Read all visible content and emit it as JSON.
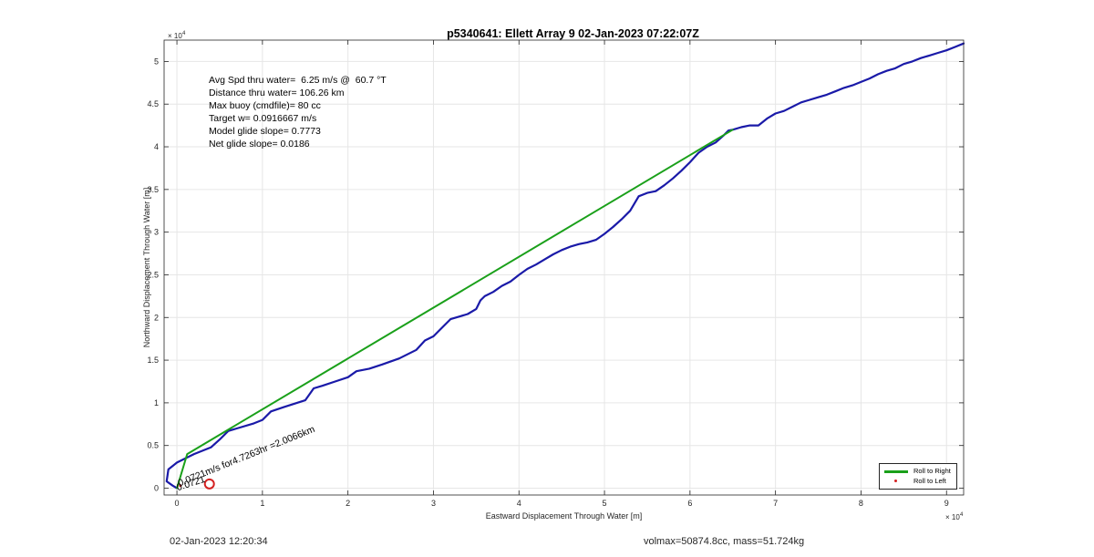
{
  "title": "p5340641: Ellett Array 9 02-Jan-2023 07:22:07Z",
  "stats": [
    "Avg Spd thru water=  6.25 m/s @  60.7 °T",
    "Distance thru water= 106.26 km",
    "Max buoy (cmdfile)= 80 cc",
    "Target w= 0.0916667 m/s",
    "Model glide slope= 0.7773",
    "Net glide slope= 0.0186"
  ],
  "annotation": "0.0721m/s for4.7263hr =2.0066km",
  "annotation_overlap_text": "0.0721",
  "footer": {
    "timestamp": "02-Jan-2023 12:20:34",
    "mass_info": "volmax=50874.8cc, mass=51.724kg"
  },
  "colors": {
    "track": "#1a1aa8",
    "roll_right": "#1aa01a",
    "roll_left": "#d42020",
    "grid": "#e6e6e6",
    "axis": "#262626"
  },
  "chart_data": {
    "type": "line",
    "xlabel": "Eastward Displacement Through Water [m]",
    "ylabel": "Northward Displacement Through Water [m]",
    "x_exponent_label": "× 10",
    "y_exponent_label": "× 10",
    "exponent": "4",
    "xlim": [
      -1500,
      92000
    ],
    "ylim": [
      -800,
      52500
    ],
    "xticks": [
      0,
      10000,
      20000,
      30000,
      40000,
      50000,
      60000,
      70000,
      80000,
      90000
    ],
    "xtick_labels": [
      "0",
      "1",
      "2",
      "3",
      "4",
      "5",
      "6",
      "7",
      "8",
      "9"
    ],
    "yticks": [
      0,
      5000,
      10000,
      15000,
      20000,
      25000,
      30000,
      35000,
      40000,
      45000,
      50000
    ],
    "ytick_labels": [
      "0",
      "0.5",
      "1",
      "1.5",
      "2",
      "2.5",
      "3",
      "3.5",
      "4",
      "4.5",
      "5"
    ],
    "grid": true,
    "legend_position": "bottom-right",
    "legend": [
      "Roll to Right",
      "Roll to Left"
    ],
    "series": [
      {
        "name": "",
        "style": "track",
        "x": [
          0,
          -500,
          -1200,
          -1000,
          0,
          2000,
          4000,
          5000,
          6000,
          7000,
          9000,
          10000,
          11000,
          12500,
          15000,
          15500,
          16000,
          17000,
          18500,
          20000,
          21000,
          22500,
          24000,
          26000,
          28000,
          29000,
          30000,
          31000,
          32000,
          33000,
          34000,
          35000,
          35500,
          36000,
          37000,
          38000,
          39000,
          40000,
          41000,
          42000,
          43000,
          44000,
          45000,
          46000,
          47000,
          48000,
          49000,
          50000,
          51000,
          52000,
          53000,
          54000,
          55000,
          56000,
          57000,
          58000,
          59000,
          60000,
          61000,
          62000,
          63000,
          64000,
          64500,
          65000,
          66000,
          67000,
          68000,
          69000,
          70000,
          71000,
          72000,
          73000,
          74000,
          75000,
          76000,
          77000,
          78000,
          79000,
          80000,
          81000,
          82000,
          83000,
          84000,
          85000,
          86000,
          87000,
          88000,
          89000,
          90000,
          91000,
          92000
        ],
        "y": [
          0,
          300,
          800,
          2200,
          3000,
          4000,
          4800,
          5700,
          6700,
          7000,
          7600,
          8000,
          9000,
          9500,
          10300,
          11000,
          11700,
          12000,
          12500,
          13000,
          13700,
          14000,
          14500,
          15200,
          16200,
          17300,
          17800,
          18800,
          19800,
          20100,
          20400,
          21000,
          22000,
          22500,
          23000,
          23700,
          24200,
          25000,
          25700,
          26200,
          26800,
          27400,
          27900,
          28300,
          28600,
          28800,
          29100,
          29800,
          30600,
          31500,
          32500,
          34200,
          34600,
          34800,
          35500,
          36300,
          37200,
          38200,
          39300,
          40000,
          40500,
          41400,
          41900,
          42000,
          42300,
          42500,
          42500,
          43300,
          43900,
          44200,
          44700,
          45200,
          45500,
          45800,
          46100,
          46500,
          46900,
          47200,
          47600,
          48000,
          48500,
          48900,
          49200,
          49700,
          50000,
          50400,
          50700,
          51000,
          51300,
          51700,
          52100
        ]
      },
      {
        "name": "Roll to Right",
        "style": "roll_right",
        "x": [
          0,
          1200,
          65000
        ],
        "y": [
          0,
          4000,
          42000
        ]
      }
    ],
    "markers": [
      {
        "name": "Roll to Left",
        "x": 400,
        "y": 300
      },
      {
        "name": "surface-position",
        "x": 3800,
        "y": 500
      }
    ]
  }
}
